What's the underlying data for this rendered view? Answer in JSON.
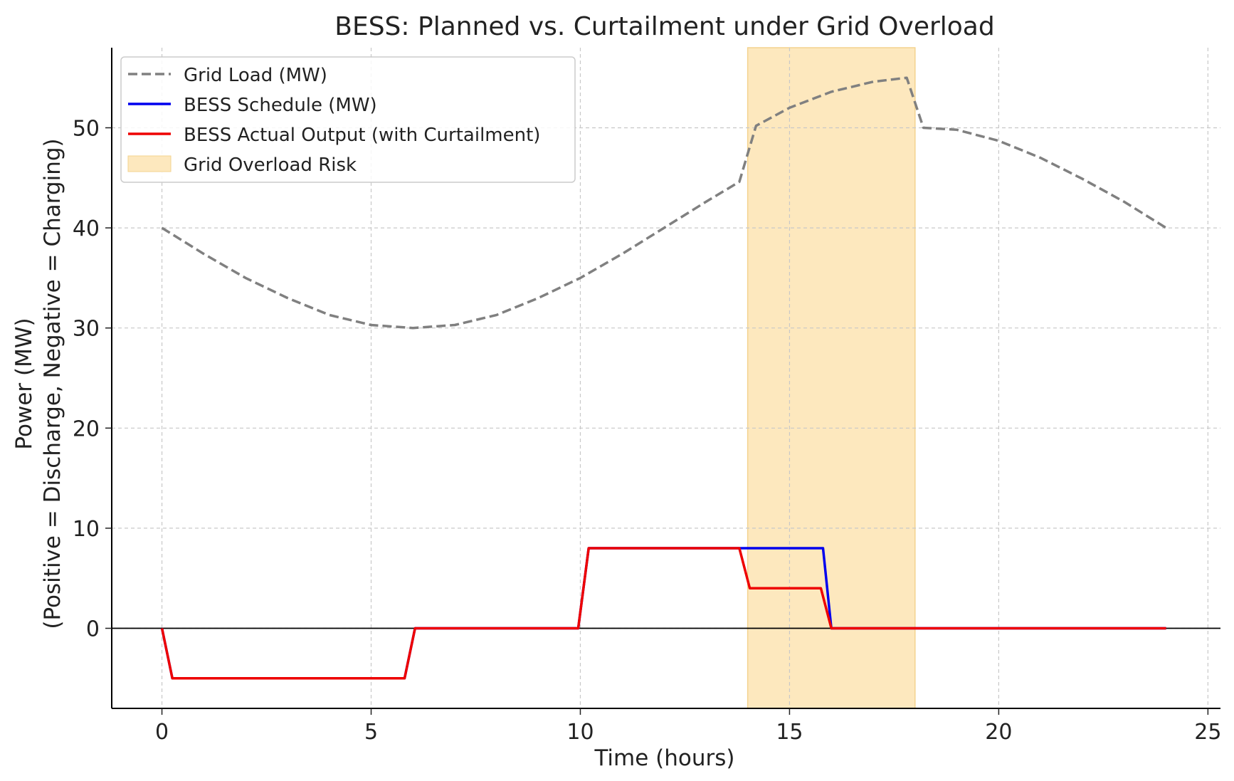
{
  "chart_data": {
    "type": "line",
    "title": "BESS: Planned vs. Curtailment under Grid Overload",
    "xlabel": "Time (hours)",
    "ylabel_line1": "Power (MW)",
    "ylabel_line2": "(Positive = Discharge, Negative = Charging)",
    "xlim": [
      -1.2,
      25.3
    ],
    "ylim": [
      -8,
      58
    ],
    "xticks": [
      0,
      5,
      10,
      15,
      20,
      25
    ],
    "yticks": [
      0,
      10,
      20,
      30,
      40,
      50
    ],
    "grid": true,
    "legend_position": "top-left",
    "shaded_region": {
      "x0": 14,
      "x1": 18,
      "label": "Grid Overload Risk",
      "color": "#fde8be"
    },
    "series": [
      {
        "name": "Grid Load (MW)",
        "color": "#808080",
        "style": "dashed",
        "x": [
          0,
          1,
          2,
          3,
          4,
          5,
          6,
          7,
          8,
          9,
          10,
          11,
          12,
          13,
          13.8,
          14.2,
          15,
          16,
          17,
          17.8,
          18.2,
          19,
          20,
          21,
          22,
          23,
          24
        ],
        "values": [
          40,
          37.4,
          35.0,
          33.0,
          31.3,
          30.3,
          30.0,
          30.3,
          31.3,
          33.0,
          35.0,
          37.4,
          40.0,
          42.6,
          44.6,
          50.2,
          52.0,
          53.6,
          54.6,
          55.0,
          50.0,
          49.8,
          48.7,
          47.0,
          44.9,
          42.6,
          40.0
        ]
      },
      {
        "name": "BESS Schedule (MW)",
        "color": "#0000ee",
        "style": "solid",
        "x": [
          0,
          0.25,
          5.8,
          6.05,
          9.95,
          10.2,
          13.8,
          15.8,
          16.0,
          24
        ],
        "values": [
          0,
          -5,
          -5,
          0,
          0,
          8,
          8,
          8,
          0,
          0
        ]
      },
      {
        "name": "BESS Actual Output (with Curtailment)",
        "color": "#ee0000",
        "style": "solid",
        "x": [
          0,
          0.25,
          5.8,
          6.05,
          9.95,
          10.2,
          13.8,
          14.05,
          15.75,
          16.0,
          24
        ],
        "values": [
          0,
          -5,
          -5,
          0,
          0,
          8,
          8,
          4,
          4,
          0,
          0
        ]
      }
    ]
  }
}
